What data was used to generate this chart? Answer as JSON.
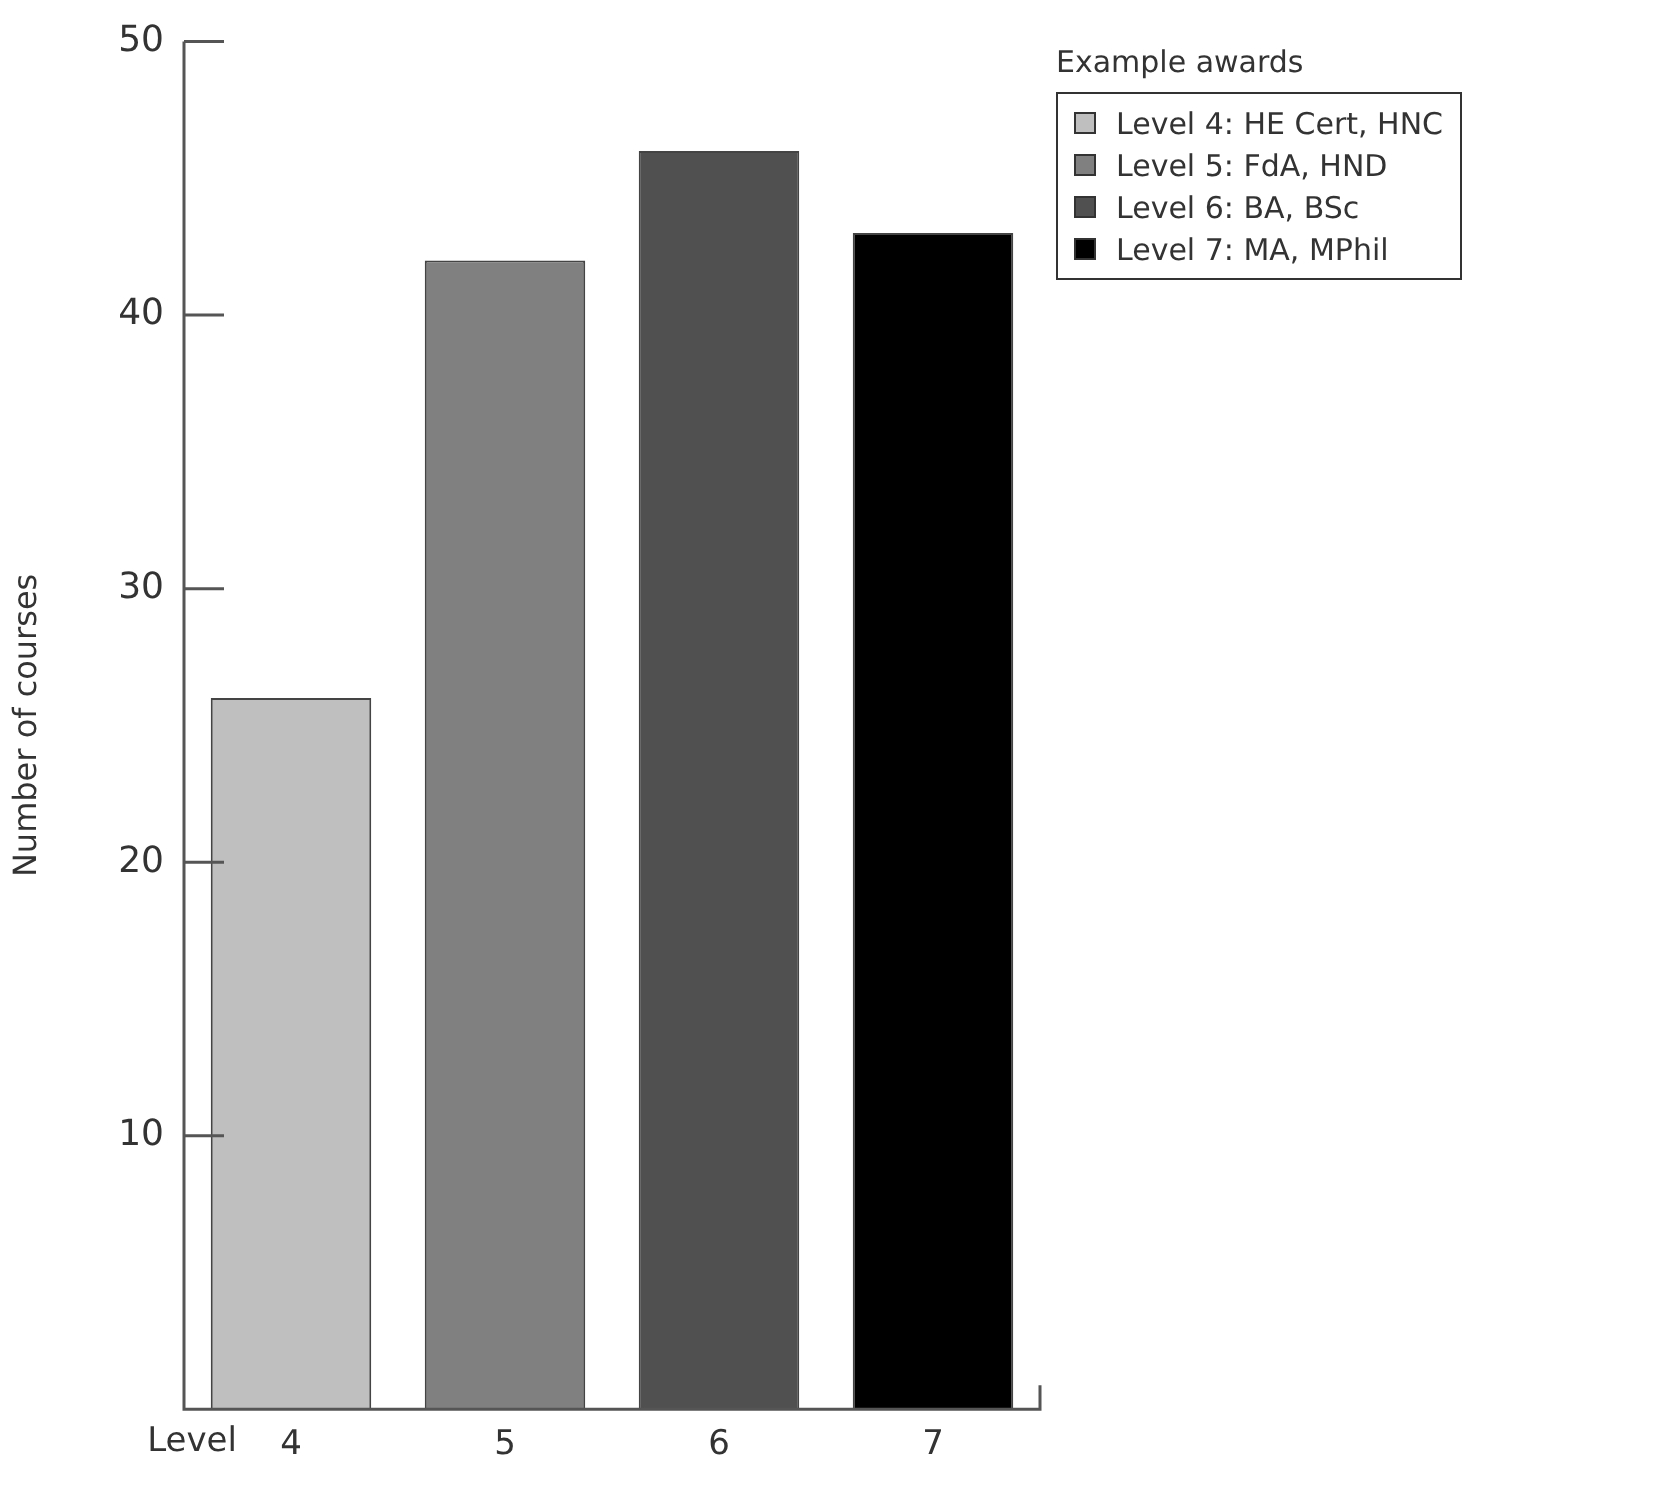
{
  "chart_data": {
    "type": "bar",
    "xlabel": "Level",
    "ylabel": "Number of courses",
    "legend_title": "Example awards",
    "categories": [
      "4",
      "5",
      "6",
      "7"
    ],
    "stacked": true,
    "series": [
      {
        "name": "Level 4: HE Cert, HNC",
        "color": "#bfbfbf",
        "values": [
          26,
          null,
          null,
          null
        ]
      },
      {
        "name": "Level 5: FdA, HND",
        "color": "#808080",
        "values": [
          null,
          42,
          null,
          null
        ]
      },
      {
        "name": "Level 6: BA, BSc",
        "color": "#505050",
        "values": [
          null,
          null,
          46,
          null
        ]
      },
      {
        "name": "Level 7: MA, MPhil",
        "color": "#000000",
        "values": [
          null,
          null,
          null,
          43
        ]
      }
    ],
    "ylim": [
      0,
      50
    ],
    "yticks": [
      10,
      20,
      30,
      40,
      50
    ],
    "grid": false,
    "legend": "top right"
  }
}
